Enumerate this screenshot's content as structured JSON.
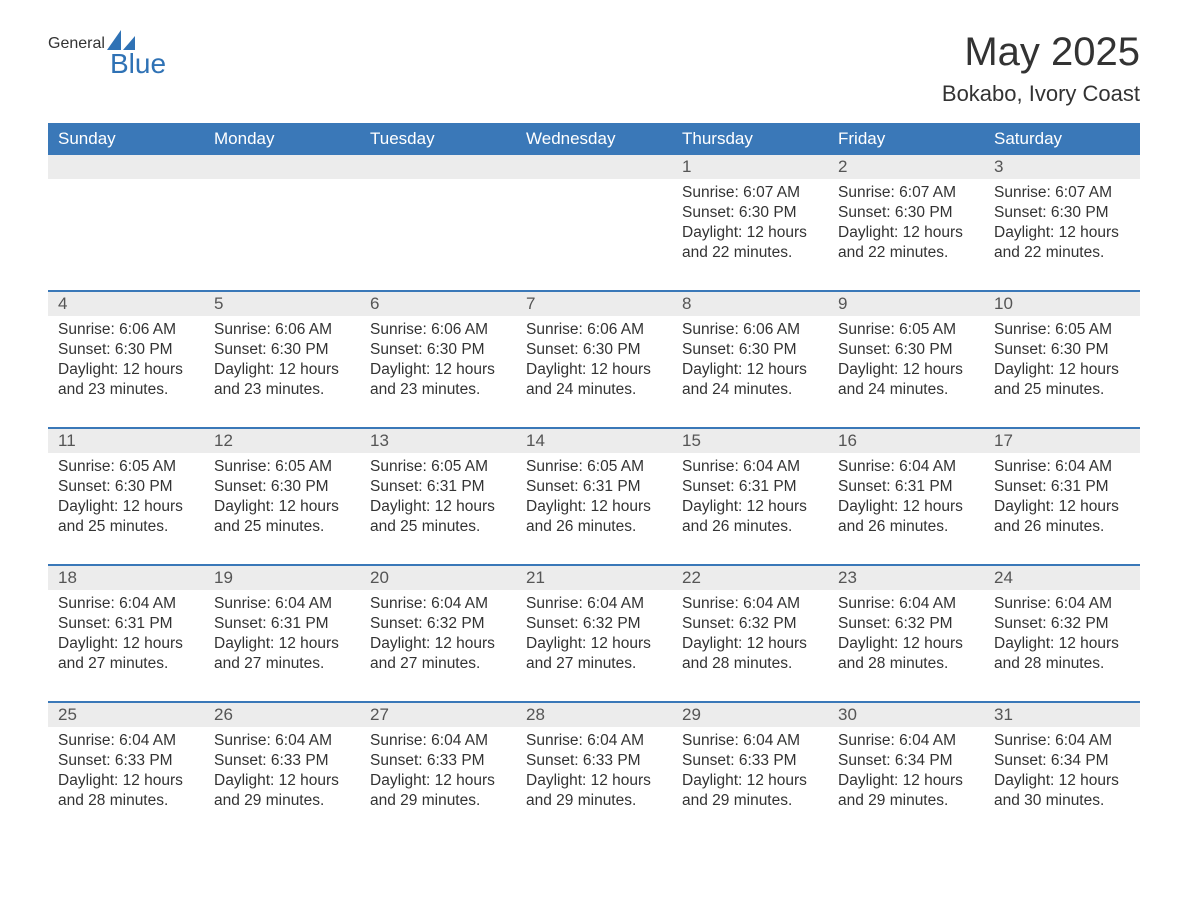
{
  "brand": {
    "general": "General",
    "blue": "Blue",
    "icon_color": "#2f72b5"
  },
  "title": "May 2025",
  "location": "Bokabo, Ivory Coast",
  "colors": {
    "header_bg": "#3a78b8",
    "header_text": "#ffffff",
    "daynum_bg": "#ececec",
    "border": "#3a78b8",
    "text": "#333333"
  },
  "day_headers": [
    "Sunday",
    "Monday",
    "Tuesday",
    "Wednesday",
    "Thursday",
    "Friday",
    "Saturday"
  ],
  "weeks": [
    [
      null,
      null,
      null,
      null,
      {
        "n": "1",
        "sunrise": "6:07 AM",
        "sunset": "6:30 PM",
        "daylight": "12 hours and 22 minutes."
      },
      {
        "n": "2",
        "sunrise": "6:07 AM",
        "sunset": "6:30 PM",
        "daylight": "12 hours and 22 minutes."
      },
      {
        "n": "3",
        "sunrise": "6:07 AM",
        "sunset": "6:30 PM",
        "daylight": "12 hours and 22 minutes."
      }
    ],
    [
      {
        "n": "4",
        "sunrise": "6:06 AM",
        "sunset": "6:30 PM",
        "daylight": "12 hours and 23 minutes."
      },
      {
        "n": "5",
        "sunrise": "6:06 AM",
        "sunset": "6:30 PM",
        "daylight": "12 hours and 23 minutes."
      },
      {
        "n": "6",
        "sunrise": "6:06 AM",
        "sunset": "6:30 PM",
        "daylight": "12 hours and 23 minutes."
      },
      {
        "n": "7",
        "sunrise": "6:06 AM",
        "sunset": "6:30 PM",
        "daylight": "12 hours and 24 minutes."
      },
      {
        "n": "8",
        "sunrise": "6:06 AM",
        "sunset": "6:30 PM",
        "daylight": "12 hours and 24 minutes."
      },
      {
        "n": "9",
        "sunrise": "6:05 AM",
        "sunset": "6:30 PM",
        "daylight": "12 hours and 24 minutes."
      },
      {
        "n": "10",
        "sunrise": "6:05 AM",
        "sunset": "6:30 PM",
        "daylight": "12 hours and 25 minutes."
      }
    ],
    [
      {
        "n": "11",
        "sunrise": "6:05 AM",
        "sunset": "6:30 PM",
        "daylight": "12 hours and 25 minutes."
      },
      {
        "n": "12",
        "sunrise": "6:05 AM",
        "sunset": "6:30 PM",
        "daylight": "12 hours and 25 minutes."
      },
      {
        "n": "13",
        "sunrise": "6:05 AM",
        "sunset": "6:31 PM",
        "daylight": "12 hours and 25 minutes."
      },
      {
        "n": "14",
        "sunrise": "6:05 AM",
        "sunset": "6:31 PM",
        "daylight": "12 hours and 26 minutes."
      },
      {
        "n": "15",
        "sunrise": "6:04 AM",
        "sunset": "6:31 PM",
        "daylight": "12 hours and 26 minutes."
      },
      {
        "n": "16",
        "sunrise": "6:04 AM",
        "sunset": "6:31 PM",
        "daylight": "12 hours and 26 minutes."
      },
      {
        "n": "17",
        "sunrise": "6:04 AM",
        "sunset": "6:31 PM",
        "daylight": "12 hours and 26 minutes."
      }
    ],
    [
      {
        "n": "18",
        "sunrise": "6:04 AM",
        "sunset": "6:31 PM",
        "daylight": "12 hours and 27 minutes."
      },
      {
        "n": "19",
        "sunrise": "6:04 AM",
        "sunset": "6:31 PM",
        "daylight": "12 hours and 27 minutes."
      },
      {
        "n": "20",
        "sunrise": "6:04 AM",
        "sunset": "6:32 PM",
        "daylight": "12 hours and 27 minutes."
      },
      {
        "n": "21",
        "sunrise": "6:04 AM",
        "sunset": "6:32 PM",
        "daylight": "12 hours and 27 minutes."
      },
      {
        "n": "22",
        "sunrise": "6:04 AM",
        "sunset": "6:32 PM",
        "daylight": "12 hours and 28 minutes."
      },
      {
        "n": "23",
        "sunrise": "6:04 AM",
        "sunset": "6:32 PM",
        "daylight": "12 hours and 28 minutes."
      },
      {
        "n": "24",
        "sunrise": "6:04 AM",
        "sunset": "6:32 PM",
        "daylight": "12 hours and 28 minutes."
      }
    ],
    [
      {
        "n": "25",
        "sunrise": "6:04 AM",
        "sunset": "6:33 PM",
        "daylight": "12 hours and 28 minutes."
      },
      {
        "n": "26",
        "sunrise": "6:04 AM",
        "sunset": "6:33 PM",
        "daylight": "12 hours and 29 minutes."
      },
      {
        "n": "27",
        "sunrise": "6:04 AM",
        "sunset": "6:33 PM",
        "daylight": "12 hours and 29 minutes."
      },
      {
        "n": "28",
        "sunrise": "6:04 AM",
        "sunset": "6:33 PM",
        "daylight": "12 hours and 29 minutes."
      },
      {
        "n": "29",
        "sunrise": "6:04 AM",
        "sunset": "6:33 PM",
        "daylight": "12 hours and 29 minutes."
      },
      {
        "n": "30",
        "sunrise": "6:04 AM",
        "sunset": "6:34 PM",
        "daylight": "12 hours and 29 minutes."
      },
      {
        "n": "31",
        "sunrise": "6:04 AM",
        "sunset": "6:34 PM",
        "daylight": "12 hours and 30 minutes."
      }
    ]
  ],
  "labels": {
    "sunrise": "Sunrise: ",
    "sunset": "Sunset: ",
    "daylight": "Daylight: "
  }
}
